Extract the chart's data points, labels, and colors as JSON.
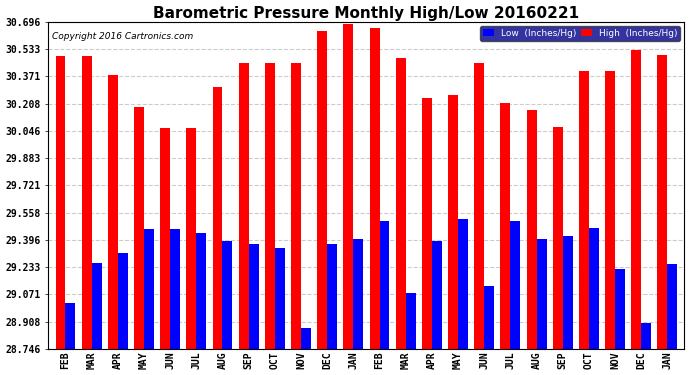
{
  "title": "Barometric Pressure Monthly High/Low 20160221",
  "copyright": "Copyright 2016 Cartronics.com",
  "months": [
    "FEB",
    "MAR",
    "APR",
    "MAY",
    "JUN",
    "JUL",
    "AUG",
    "SEP",
    "OCT",
    "NOV",
    "DEC",
    "JAN",
    "FEB",
    "MAR",
    "APR",
    "MAY",
    "JUN",
    "JUL",
    "AUG",
    "SEP",
    "OCT",
    "NOV",
    "DEC",
    "JAN"
  ],
  "high": [
    30.49,
    30.49,
    30.38,
    30.19,
    30.06,
    30.06,
    30.31,
    30.45,
    30.45,
    30.45,
    30.64,
    30.68,
    30.66,
    30.48,
    30.24,
    30.26,
    30.45,
    30.21,
    30.17,
    30.07,
    30.4,
    30.4,
    30.53,
    30.5
  ],
  "low": [
    29.02,
    29.26,
    29.32,
    29.46,
    29.46,
    29.44,
    29.39,
    29.37,
    29.35,
    28.87,
    29.37,
    29.4,
    29.51,
    29.08,
    29.39,
    29.52,
    29.12,
    29.51,
    29.4,
    29.42,
    29.47,
    29.22,
    28.9,
    29.25
  ],
  "ymin": 28.746,
  "ymax": 30.696,
  "yticks": [
    28.746,
    28.908,
    29.071,
    29.233,
    29.396,
    29.558,
    29.721,
    29.883,
    30.046,
    30.208,
    30.371,
    30.533,
    30.696
  ],
  "bar_color_low": "#0000ff",
  "bar_color_high": "#ff0000",
  "background_color": "#ffffff",
  "grid_color": "#cccccc",
  "title_fontsize": 11,
  "legend_label_low": "Low  (Inches/Hg)",
  "legend_label_high": "High  (Inches/Hg)"
}
